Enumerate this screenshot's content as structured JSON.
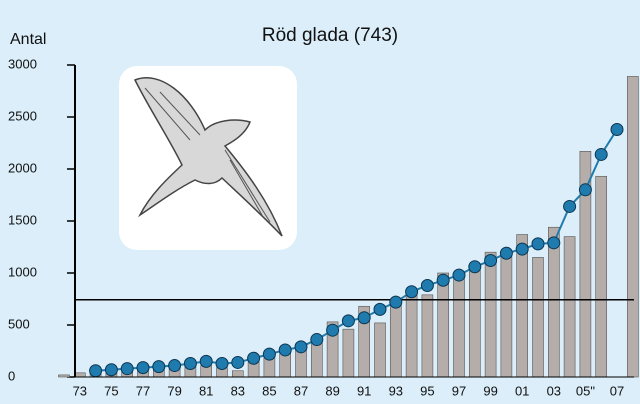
{
  "chart_data": {
    "type": "bar",
    "title": "Röd glada  (743)",
    "ylabel": "Antal",
    "categories": [
      null,
      "73",
      null,
      "75",
      null,
      "77",
      null,
      "79",
      null,
      "81",
      null,
      "83",
      null,
      "85",
      null,
      "87",
      null,
      "89",
      null,
      "91",
      null,
      "93",
      null,
      "95",
      null,
      "97",
      null,
      "99",
      null,
      "01",
      null,
      "03",
      null,
      "05\"",
      null,
      "07",
      null
    ],
    "series": [
      {
        "type": "bar",
        "color": "#b5adaa",
        "values": [
          20,
          40,
          30,
          60,
          50,
          60,
          70,
          80,
          100,
          110,
          90,
          60,
          150,
          200,
          250,
          300,
          380,
          530,
          460,
          680,
          520,
          700,
          820,
          790,
          1000,
          1000,
          1080,
          1200,
          1200,
          1370,
          1150,
          1440,
          1350,
          2170,
          1930,
          null,
          2890
        ]
      },
      {
        "type": "line",
        "color": "#1f7bae",
        "values": [
          null,
          null,
          60,
          70,
          80,
          90,
          100,
          110,
          130,
          150,
          130,
          140,
          180,
          220,
          260,
          290,
          360,
          450,
          540,
          570,
          650,
          720,
          820,
          880,
          930,
          980,
          1060,
          1120,
          1190,
          1230,
          1280,
          1290,
          1640,
          1800,
          2140,
          2380,
          null
        ]
      }
    ],
    "mean_line": 743,
    "ylim": [
      0,
      3000
    ],
    "yticks": [
      0,
      500,
      1000,
      1500,
      2000,
      2500,
      3000
    ]
  }
}
